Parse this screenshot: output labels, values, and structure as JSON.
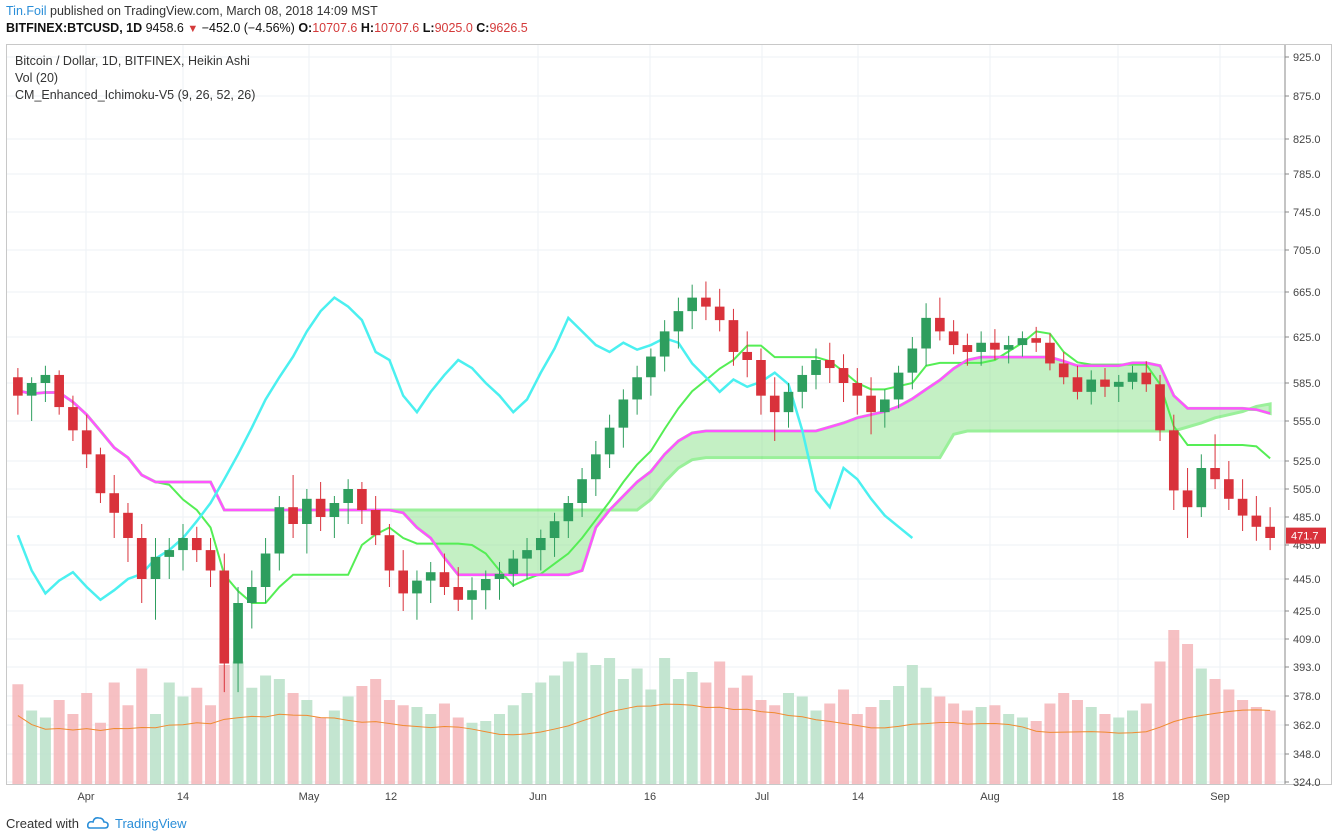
{
  "header": {
    "author": "Tin.Foil",
    "published_text": "published on TradingView.com, March 08, 2018 14:09 MST",
    "symbol": "BITFINEX:BTCUSD, 1D",
    "last": "9458.6",
    "change": "−452.0 (−4.56%)",
    "o_label": "O:",
    "o": "10707.6",
    "h_label": "H:",
    "h": "10707.6",
    "l_label": "L:",
    "l": "9025.0",
    "c_label": "C:",
    "c": "9626.5"
  },
  "legend": {
    "title": "Bitcoin / Dollar, 1D, BITFINEX, Heikin Ashi",
    "vol": "Vol (20)",
    "indicator": "CM_Enhanced_Ichimoku-V5 (9, 26, 52, 26)"
  },
  "footer": {
    "created_with": "Created with",
    "brand": "TradingView"
  },
  "colors": {
    "up": "#2e9e5e",
    "down": "#d9323b",
    "tenkan": "#4bf0f0",
    "kijun": "#ff55ff",
    "chikou": "#9a9a9a",
    "cloud_bull": "#22e022",
    "cloud_bear": "#ee2222",
    "conversion": "#55ee55",
    "vol_ma": "#f08a30"
  },
  "chart_data": {
    "type": "candlestick",
    "price_axis_labels": [
      "925.0",
      "875.0",
      "825.0",
      "785.0",
      "745.0",
      "705.0",
      "665.0",
      "625.0",
      "585.0",
      "555.0",
      "525.0",
      "505.0",
      "485.0",
      "465.0",
      "445.0",
      "425.0",
      "409.0",
      "393.0",
      "378.0",
      "362.0",
      "348.0",
      "324.0"
    ],
    "x_axis_labels": [
      "Apr",
      "14",
      "May",
      "12",
      "Jun",
      "16",
      "Jul",
      "14",
      "Aug",
      "18",
      "Sep"
    ],
    "last_price_label": "471.7",
    "price_range": [
      324,
      925
    ],
    "candles": [
      [
        590,
        598,
        560,
        575
      ],
      [
        575,
        590,
        555,
        585
      ],
      [
        585,
        600,
        570,
        592
      ],
      [
        592,
        596,
        560,
        566
      ],
      [
        566,
        575,
        540,
        548
      ],
      [
        548,
        560,
        520,
        530
      ],
      [
        530,
        535,
        495,
        502
      ],
      [
        502,
        515,
        470,
        488
      ],
      [
        488,
        495,
        455,
        470
      ],
      [
        470,
        480,
        430,
        445
      ],
      [
        445,
        470,
        420,
        458
      ],
      [
        458,
        470,
        445,
        462
      ],
      [
        462,
        480,
        450,
        470
      ],
      [
        470,
        478,
        455,
        462
      ],
      [
        462,
        470,
        440,
        450
      ],
      [
        450,
        460,
        380,
        395
      ],
      [
        395,
        440,
        380,
        430
      ],
      [
        430,
        450,
        415,
        440
      ],
      [
        440,
        470,
        430,
        460
      ],
      [
        460,
        500,
        450,
        492
      ],
      [
        492,
        515,
        470,
        480
      ],
      [
        480,
        505,
        460,
        498
      ],
      [
        498,
        510,
        475,
        485
      ],
      [
        485,
        500,
        470,
        495
      ],
      [
        495,
        512,
        480,
        505
      ],
      [
        505,
        510,
        480,
        490
      ],
      [
        490,
        500,
        465,
        472
      ],
      [
        472,
        480,
        440,
        450
      ],
      [
        450,
        462,
        425,
        436
      ],
      [
        436,
        450,
        420,
        444
      ],
      [
        444,
        455,
        430,
        449
      ],
      [
        449,
        460,
        435,
        440
      ],
      [
        440,
        452,
        425,
        432
      ],
      [
        432,
        446,
        420,
        438
      ],
      [
        438,
        450,
        426,
        445
      ],
      [
        445,
        455,
        432,
        448
      ],
      [
        448,
        462,
        440,
        457
      ],
      [
        457,
        470,
        445,
        462
      ],
      [
        462,
        476,
        450,
        470
      ],
      [
        470,
        488,
        458,
        482
      ],
      [
        482,
        500,
        470,
        495
      ],
      [
        495,
        520,
        485,
        512
      ],
      [
        512,
        540,
        500,
        530
      ],
      [
        530,
        560,
        520,
        550
      ],
      [
        550,
        580,
        535,
        572
      ],
      [
        572,
        600,
        560,
        590
      ],
      [
        590,
        615,
        575,
        608
      ],
      [
        608,
        640,
        595,
        630
      ],
      [
        630,
        660,
        615,
        648
      ],
      [
        648,
        672,
        632,
        660
      ],
      [
        660,
        675,
        640,
        652
      ],
      [
        652,
        668,
        630,
        640
      ],
      [
        640,
        650,
        600,
        612
      ],
      [
        612,
        630,
        590,
        605
      ],
      [
        605,
        615,
        560,
        575
      ],
      [
        575,
        590,
        540,
        562
      ],
      [
        562,
        585,
        550,
        578
      ],
      [
        578,
        600,
        565,
        592
      ],
      [
        592,
        615,
        580,
        605
      ],
      [
        605,
        620,
        585,
        598
      ],
      [
        598,
        610,
        570,
        585
      ],
      [
        585,
        598,
        560,
        575
      ],
      [
        575,
        590,
        545,
        562
      ],
      [
        562,
        580,
        550,
        572
      ],
      [
        572,
        600,
        565,
        594
      ],
      [
        594,
        625,
        580,
        615
      ],
      [
        615,
        655,
        600,
        642
      ],
      [
        642,
        660,
        622,
        630
      ],
      [
        630,
        640,
        610,
        618
      ],
      [
        618,
        628,
        600,
        612
      ],
      [
        612,
        630,
        600,
        620
      ],
      [
        620,
        632,
        605,
        614
      ],
      [
        614,
        626,
        602,
        618
      ],
      [
        618,
        630,
        608,
        624
      ],
      [
        624,
        634,
        612,
        620
      ],
      [
        620,
        628,
        596,
        602
      ],
      [
        602,
        612,
        584,
        590
      ],
      [
        590,
        600,
        572,
        578
      ],
      [
        578,
        596,
        568,
        588
      ],
      [
        588,
        598,
        574,
        582
      ],
      [
        582,
        592,
        570,
        586
      ],
      [
        586,
        600,
        580,
        594
      ],
      [
        594,
        604,
        578,
        584
      ],
      [
        584,
        592,
        540,
        548
      ],
      [
        548,
        560,
        490,
        504
      ],
      [
        504,
        520,
        470,
        492
      ],
      [
        492,
        530,
        485,
        520
      ],
      [
        520,
        545,
        505,
        512
      ],
      [
        512,
        525,
        490,
        498
      ],
      [
        498,
        512,
        475,
        486
      ],
      [
        486,
        500,
        468,
        478
      ],
      [
        478,
        492,
        462,
        470
      ]
    ],
    "volume": [
      57,
      42,
      38,
      48,
      40,
      52,
      35,
      58,
      45,
      66,
      40,
      58,
      50,
      55,
      45,
      68,
      70,
      55,
      62,
      60,
      52,
      48,
      38,
      42,
      50,
      56,
      60,
      48,
      45,
      44,
      40,
      46,
      38,
      35,
      36,
      40,
      45,
      52,
      58,
      62,
      70,
      75,
      68,
      72,
      60,
      66,
      54,
      72,
      60,
      64,
      58,
      70,
      55,
      62,
      48,
      45,
      52,
      50,
      42,
      46,
      54,
      40,
      44,
      48,
      56,
      68,
      55,
      50,
      46,
      42,
      44,
      45,
      40,
      38,
      36,
      46,
      52,
      48,
      44,
      40,
      38,
      42,
      46,
      70,
      88,
      80,
      66,
      60,
      54,
      48,
      44,
      42
    ]
  }
}
